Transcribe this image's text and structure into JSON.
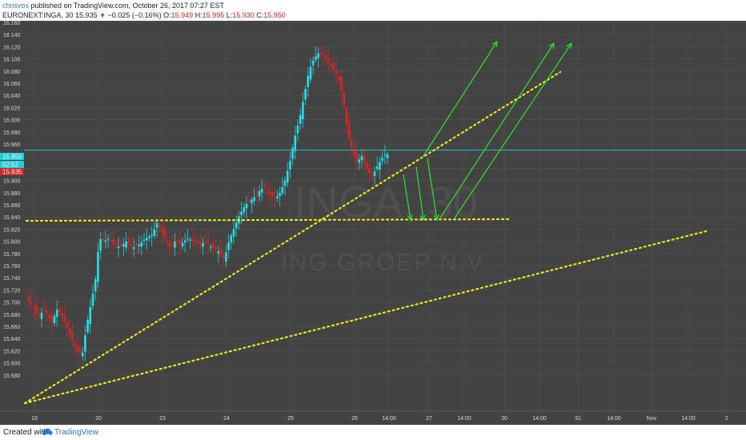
{
  "header": {
    "author": "chrisvos",
    "published_text": "published on TradingView.com, October 26, 2017 07:27 EST",
    "symbol": "EURONEXT:INGA, 30",
    "last_price": "15.935",
    "change": "−0.025 (−0.16%)",
    "open_label": "O:",
    "open_value": "15.949",
    "high_label": "H:",
    "high_value": "15.995",
    "low_label": "L:",
    "low_value": "15.930",
    "close_label": "C:",
    "close_value": "15.950"
  },
  "watermark": {
    "ticker": "INGA, 30",
    "company": "ING GROEP N.V."
  },
  "price_badges": {
    "current": "15.950",
    "countdown": "02:52",
    "last": "15.935"
  },
  "footer": {
    "created_with": "Created with",
    "brand": "TradingView"
  },
  "colors": {
    "background": "#434343",
    "up": "#22e0e8",
    "down": "#d52727",
    "trend_lines": "#e8e81a",
    "arrows": "#30e030",
    "price_line": "#2fb8c9"
  },
  "chart_data": {
    "type": "candlestick",
    "y_axis_ticks": [
      "16.160",
      "16.140",
      "16.120",
      "16.100",
      "16.080",
      "16.060",
      "16.040",
      "16.020",
      "16.000",
      "15.980",
      "15.960",
      "15.940",
      "15.920",
      "15.900",
      "15.880",
      "15.860",
      "15.840",
      "15.820",
      "15.800",
      "15.780",
      "15.760",
      "15.740",
      "15.720",
      "15.700",
      "15.680",
      "15.660",
      "15.640",
      "15.620",
      "15.600",
      "15.580"
    ],
    "x_axis_ticks": [
      "19",
      "20",
      "23",
      "24",
      "25",
      "26",
      "14:00",
      "27",
      "14:00",
      "30",
      "14:00",
      "31",
      "14:00",
      "Nov",
      "14:00",
      "2"
    ],
    "ylim": [
      15.566,
      16.162
    ],
    "candles_summary": [
      {
        "session": "19",
        "open": 15.705,
        "close": 15.645
      },
      {
        "session": "20",
        "open": 15.6,
        "close": 15.805
      },
      {
        "session": "23",
        "open": 15.805,
        "close": 15.785
      },
      {
        "session": "24",
        "open": 15.76,
        "close": 15.885
      },
      {
        "session": "25",
        "open": 15.89,
        "close": 16.08
      },
      {
        "session": "26",
        "open": 16.08,
        "close": 15.935
      }
    ],
    "current_price": 15.95,
    "horizontal_support": 15.852,
    "trend_lines": [
      {
        "from": [
          "19",
          15.575
        ],
        "to": [
          "30 14:00",
          16.08
        ]
      },
      {
        "from": [
          "19",
          15.575
        ],
        "to": [
          "Nov 14:00",
          15.84
        ]
      }
    ]
  }
}
